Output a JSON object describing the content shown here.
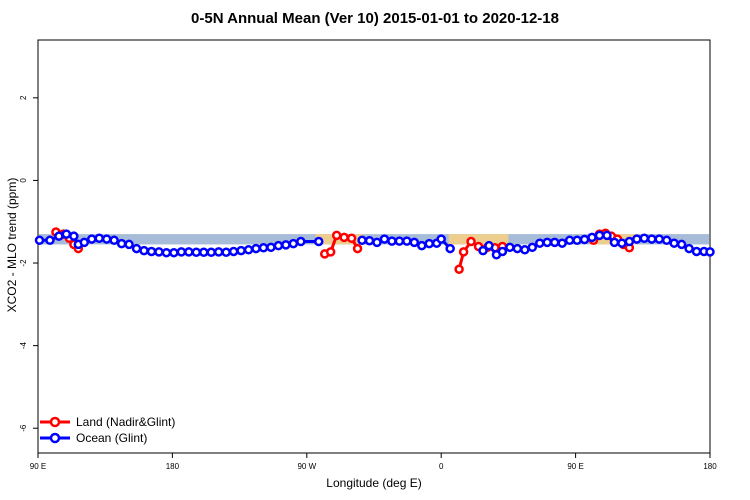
{
  "chart_data": {
    "type": "line",
    "title": "0-5N Annual Mean (Ver 10)   2015-01-01 to 2020-12-18",
    "xlabel": "Longitude (deg E)",
    "ylabel": "XCO2 - MLO trend (ppm)",
    "x_ticks": [
      {
        "value": 90,
        "label": "90 E"
      },
      {
        "value": 180,
        "label": "180"
      },
      {
        "value": 270,
        "label": "90 W"
      },
      {
        "value": 360,
        "label": "0"
      },
      {
        "value": 450,
        "label": "90 E"
      },
      {
        "value": 540,
        "label": "180"
      }
    ],
    "y_ticks": [
      {
        "value": 2,
        "label": "2"
      },
      {
        "value": 0,
        "label": "0"
      },
      {
        "value": -2,
        "label": "-2"
      },
      {
        "value": -4,
        "label": "-4"
      },
      {
        "value": -6,
        "label": "-6"
      }
    ],
    "xlim": [
      90,
      540
    ],
    "ylim": [
      -6.6,
      3.4
    ],
    "grid": false,
    "legend_position": "bottom-left",
    "series": [
      {
        "name": "Land (Nadir&Glint)",
        "color": "#ff0000",
        "segments": [
          [
            [
              102,
              -1.25
            ],
            [
              107,
              -1.3
            ],
            [
              111,
              -1.4
            ],
            [
              114,
              -1.55
            ],
            [
              117,
              -1.65
            ]
          ],
          [
            [
              282,
              -1.78
            ],
            [
              286,
              -1.73
            ],
            [
              290,
              -1.33
            ],
            [
              295,
              -1.38
            ],
            [
              300,
              -1.4
            ],
            [
              304,
              -1.65
            ]
          ],
          [
            [
              372,
              -2.15
            ],
            [
              375,
              -1.73
            ],
            [
              380,
              -1.48
            ],
            [
              385,
              -1.6
            ],
            [
              391,
              -1.62
            ],
            [
              396,
              -1.63
            ],
            [
              401,
              -1.6
            ]
          ],
          [
            [
              462,
              -1.45
            ],
            [
              466,
              -1.3
            ],
            [
              470,
              -1.28
            ],
            [
              474,
              -1.35
            ],
            [
              478,
              -1.42
            ],
            [
              482,
              -1.55
            ],
            [
              486,
              -1.63
            ]
          ]
        ]
      },
      {
        "name": "Ocean (Glint)",
        "color": "#0000ff",
        "segments": [
          [
            [
              91,
              -1.45
            ],
            [
              98,
              -1.45
            ],
            [
              104,
              -1.35
            ],
            [
              109,
              -1.3
            ],
            [
              114,
              -1.35
            ],
            [
              117,
              -1.55
            ],
            [
              121,
              -1.5
            ],
            [
              126,
              -1.42
            ],
            [
              131,
              -1.4
            ],
            [
              136,
              -1.42
            ],
            [
              141,
              -1.45
            ],
            [
              146,
              -1.53
            ],
            [
              151,
              -1.55
            ],
            [
              156,
              -1.65
            ],
            [
              161,
              -1.7
            ],
            [
              166,
              -1.72
            ],
            [
              171,
              -1.73
            ],
            [
              176,
              -1.75
            ],
            [
              181,
              -1.75
            ],
            [
              186,
              -1.73
            ],
            [
              191,
              -1.73
            ],
            [
              196,
              -1.74
            ],
            [
              201,
              -1.74
            ],
            [
              206,
              -1.74
            ],
            [
              211,
              -1.73
            ],
            [
              216,
              -1.74
            ],
            [
              221,
              -1.72
            ],
            [
              226,
              -1.7
            ],
            [
              231,
              -1.68
            ],
            [
              236,
              -1.65
            ],
            [
              241,
              -1.63
            ],
            [
              246,
              -1.62
            ],
            [
              251,
              -1.58
            ],
            [
              256,
              -1.56
            ],
            [
              261,
              -1.53
            ],
            [
              266,
              -1.48
            ],
            [
              278,
              -1.48
            ]
          ],
          [
            [
              307,
              -1.45
            ],
            [
              312,
              -1.46
            ],
            [
              317,
              -1.5
            ],
            [
              322,
              -1.42
            ],
            [
              327,
              -1.47
            ],
            [
              332,
              -1.47
            ],
            [
              337,
              -1.47
            ],
            [
              342,
              -1.5
            ],
            [
              347,
              -1.58
            ],
            [
              352,
              -1.53
            ],
            [
              357,
              -1.52
            ],
            [
              360,
              -1.42
            ],
            [
              366,
              -1.65
            ]
          ],
          [
            [
              388,
              -1.7
            ],
            [
              392,
              -1.58
            ],
            [
              397,
              -1.8
            ],
            [
              401,
              -1.72
            ],
            [
              406,
              -1.62
            ],
            [
              411,
              -1.65
            ],
            [
              416,
              -1.68
            ],
            [
              421,
              -1.62
            ],
            [
              426,
              -1.52
            ],
            [
              431,
              -1.5
            ],
            [
              436,
              -1.5
            ],
            [
              441,
              -1.52
            ],
            [
              446,
              -1.45
            ],
            [
              451,
              -1.45
            ],
            [
              456,
              -1.43
            ],
            [
              461,
              -1.38
            ],
            [
              466,
              -1.33
            ],
            [
              471,
              -1.33
            ],
            [
              476,
              -1.5
            ],
            [
              481,
              -1.52
            ],
            [
              486,
              -1.48
            ],
            [
              491,
              -1.42
            ],
            [
              496,
              -1.4
            ],
            [
              501,
              -1.42
            ],
            [
              506,
              -1.42
            ],
            [
              511,
              -1.45
            ],
            [
              516,
              -1.52
            ],
            [
              521,
              -1.55
            ],
            [
              526,
              -1.65
            ],
            [
              531,
              -1.72
            ],
            [
              536,
              -1.72
            ],
            [
              540,
              -1.73
            ]
          ]
        ]
      }
    ]
  }
}
